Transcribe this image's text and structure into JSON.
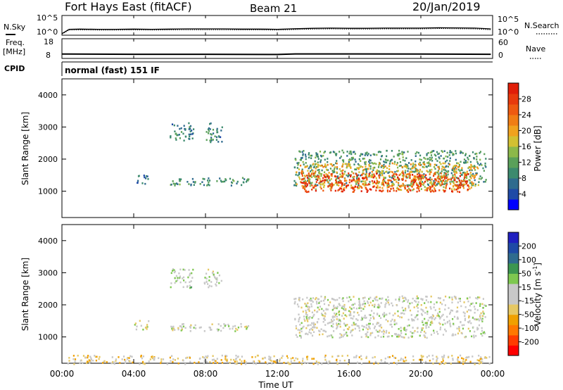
{
  "header": {
    "station": "Fort Hays East (fitACF)",
    "beam": "Beam 21",
    "date": "20/Jan/2019"
  },
  "noise_panel": {
    "left_label": "N.Sky",
    "right_label": "N.Search",
    "left_ticks": [
      "10^5",
      "10^0"
    ],
    "right_ticks": [
      "10^5",
      "10^0"
    ]
  },
  "freq_panel": {
    "left_label_1": "Freq.",
    "left_label_2": "[MHz]",
    "right_label": "Nave",
    "left_ticks": [
      "18",
      "8"
    ],
    "right_ticks": [
      "60",
      "0"
    ]
  },
  "cpid": {
    "label": "CPID",
    "text": "normal (fast) 151 IF"
  },
  "power_panel": {
    "ylabel": "Slant Range [km]",
    "colorbar_label": "Power [dB]",
    "colorbar_ticks": [
      "28",
      "24",
      "20",
      "16",
      "12",
      "8",
      "4"
    ]
  },
  "velocity_panel": {
    "ylabel": "Slant Range [km]",
    "colorbar_label": "Velocity [m s",
    "colorbar_label_sup": "-1",
    "colorbar_label_end": "]",
    "colorbar_ticks": [
      "200",
      "100",
      "50",
      "15",
      "-15",
      "-50",
      "-100",
      "-200"
    ]
  },
  "x_axis": {
    "label": "Time UT",
    "ticks": [
      "00:00",
      "04:00",
      "08:00",
      "12:00",
      "16:00",
      "20:00",
      "00:00"
    ]
  },
  "colors": {
    "power_scale": [
      "#0000ff",
      "#1f4aa6",
      "#2f6b8e",
      "#3c8a6e",
      "#5aa05a",
      "#8cb84a",
      "#d2c032",
      "#f0a21e",
      "#f07d14",
      "#ee5a10",
      "#e83a0c",
      "#e01e08"
    ],
    "velocity_scale": [
      "#ff0000",
      "#ff3c00",
      "#ff7800",
      "#f0a000",
      "#e6c864",
      "#c8c8c8",
      "#c8c8c8",
      "#7ec850",
      "#3c9650",
      "#2f6b8e",
      "#1f4aa6",
      "#2020c0"
    ]
  },
  "chart_data": [
    {
      "type": "line",
      "name": "noise",
      "x_units": "hours UT",
      "x": [
        0,
        0.4,
        1,
        2,
        3,
        4,
        5,
        6,
        7,
        8,
        9,
        10,
        11,
        12,
        13,
        14,
        15,
        16,
        17,
        18,
        19,
        20,
        21,
        22,
        23,
        23.9
      ],
      "series": [
        {
          "values": [
            0.4,
            1.5,
            1.55,
            1.5,
            1.5,
            1.55,
            1.5,
            1.55,
            1.6,
            1.6,
            1.6,
            1.55,
            1.55,
            1.5,
            1.65,
            1.75,
            1.8,
            1.75,
            1.75,
            1.8,
            1.8,
            1.8,
            1.9,
            1.85,
            1.8,
            1.6
          ]
        },
        {
          "values": [
            0.3,
            1.3,
            1.35,
            1.3,
            1.3,
            1.35,
            1.3,
            1.35,
            1.4,
            1.4,
            1.4,
            1.35,
            1.35,
            1.3,
            1.45,
            1.55,
            1.6,
            1.55,
            1.55,
            1.6,
            1.6,
            1.6,
            1.7,
            1.65,
            1.6,
            1.4
          ]
        }
      ],
      "ylim": [
        0,
        5
      ]
    },
    {
      "type": "line",
      "name": "frequency",
      "x_units": "hours UT",
      "x": [
        0,
        0.4,
        4,
        8,
        12,
        13,
        16,
        20,
        23.9
      ],
      "values": [
        10.2,
        10.2,
        10.1,
        10.1,
        10.0,
        10.3,
        10.3,
        10.2,
        10.1
      ],
      "ylim": [
        8,
        18
      ]
    },
    {
      "type": "heatmap",
      "name": "power",
      "x_units": "hours UT",
      "y_units": "km",
      "xlim": [
        0,
        24
      ],
      "ylim": [
        180,
        4500
      ],
      "zlim": [
        0,
        30
      ],
      "clusters": [
        {
          "x": [
            6.0,
            7.3
          ],
          "y": [
            2550,
            3150
          ],
          "value": 8
        },
        {
          "x": [
            7.9,
            8.9
          ],
          "y": [
            2550,
            3150
          ],
          "value": 8
        },
        {
          "x": [
            4.0,
            4.8
          ],
          "y": [
            1250,
            1550
          ],
          "value": 6
        },
        {
          "x": [
            6.0,
            10.4
          ],
          "y": [
            1200,
            1450
          ],
          "value": 9
        },
        {
          "x": [
            12.9,
            23.6
          ],
          "y": [
            1200,
            2300
          ],
          "value": 10
        },
        {
          "x": [
            13.0,
            23.2
          ],
          "y": [
            1050,
            1900
          ],
          "value": 18
        },
        {
          "x": [
            13.3,
            22.6
          ],
          "y": [
            1000,
            1600
          ],
          "value": 26
        }
      ]
    },
    {
      "type": "heatmap",
      "name": "velocity",
      "x_units": "hours UT",
      "y_units": "km",
      "xlim": [
        0,
        24
      ],
      "ylim": [
        180,
        4500
      ],
      "zlim": [
        -200,
        200
      ],
      "clusters": [
        {
          "x": [
            6.0,
            7.3
          ],
          "y": [
            2550,
            3150
          ],
          "value": 20
        },
        {
          "x": [
            7.9,
            8.9
          ],
          "y": [
            2550,
            3150
          ],
          "value": 0
        },
        {
          "x": [
            4.0,
            4.8
          ],
          "y": [
            1250,
            1550
          ],
          "value": 0
        },
        {
          "x": [
            6.0,
            10.4
          ],
          "y": [
            1200,
            1450
          ],
          "value": 0
        },
        {
          "x": [
            12.9,
            23.6
          ],
          "y": [
            1000,
            2300
          ],
          "value": 0
        },
        {
          "x": [
            0.3,
            23.8
          ],
          "y": [
            180,
            450
          ],
          "value": -40
        }
      ]
    }
  ]
}
